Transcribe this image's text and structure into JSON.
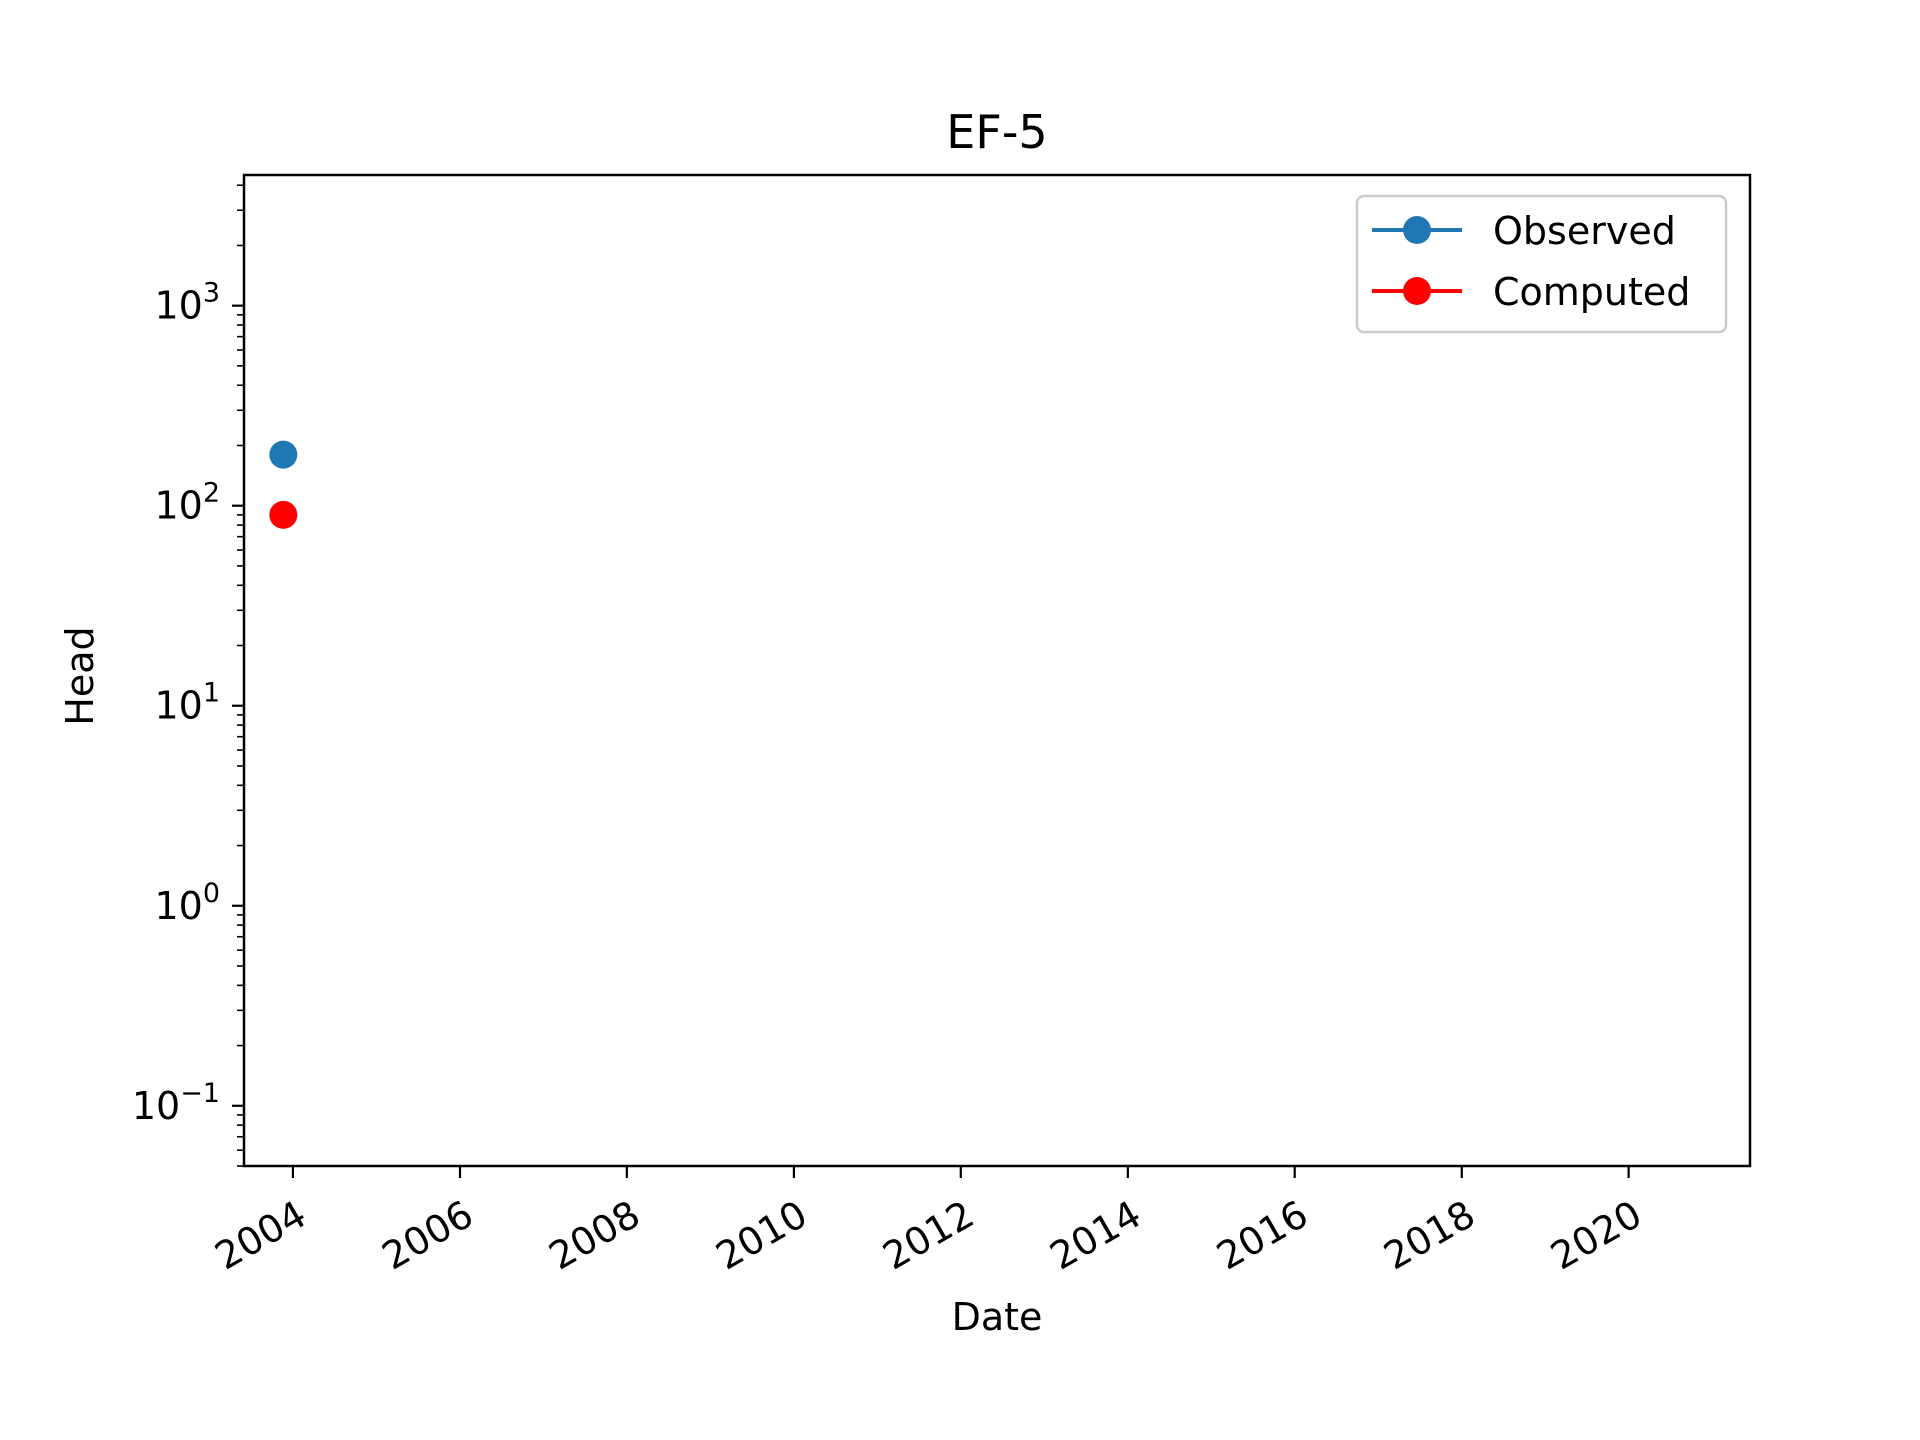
{
  "chart_data": {
    "type": "scatter",
    "title": "EF-5",
    "xlabel": "Date",
    "ylabel": "Head",
    "x_axis": {
      "kind": "date",
      "range": [
        "2003-06-01",
        "2021-06-15"
      ],
      "ticks": [
        "2004",
        "2006",
        "2008",
        "2010",
        "2012",
        "2014",
        "2016",
        "2018",
        "2020"
      ]
    },
    "y_axis": {
      "scale": "log",
      "range": [
        0.05,
        4500
      ],
      "ticks": [
        {
          "value": 0.1,
          "mantissa": "10",
          "exponent": "−1"
        },
        {
          "value": 1,
          "mantissa": "10",
          "exponent": "0"
        },
        {
          "value": 10,
          "mantissa": "10",
          "exponent": "1"
        },
        {
          "value": 100,
          "mantissa": "10",
          "exponent": "2"
        },
        {
          "value": 1000,
          "mantissa": "10",
          "exponent": "3"
        }
      ]
    },
    "grid": false,
    "legend_position": "top-right",
    "series": [
      {
        "name": "Observed",
        "color": "#1f77b4",
        "marker": "circle",
        "points": [
          {
            "x": "2003-11-20",
            "y": 180
          }
        ]
      },
      {
        "name": "Computed",
        "color": "#ff0000",
        "marker": "circle",
        "points": [
          {
            "x": "2003-11-20",
            "y": 90
          }
        ]
      }
    ]
  }
}
